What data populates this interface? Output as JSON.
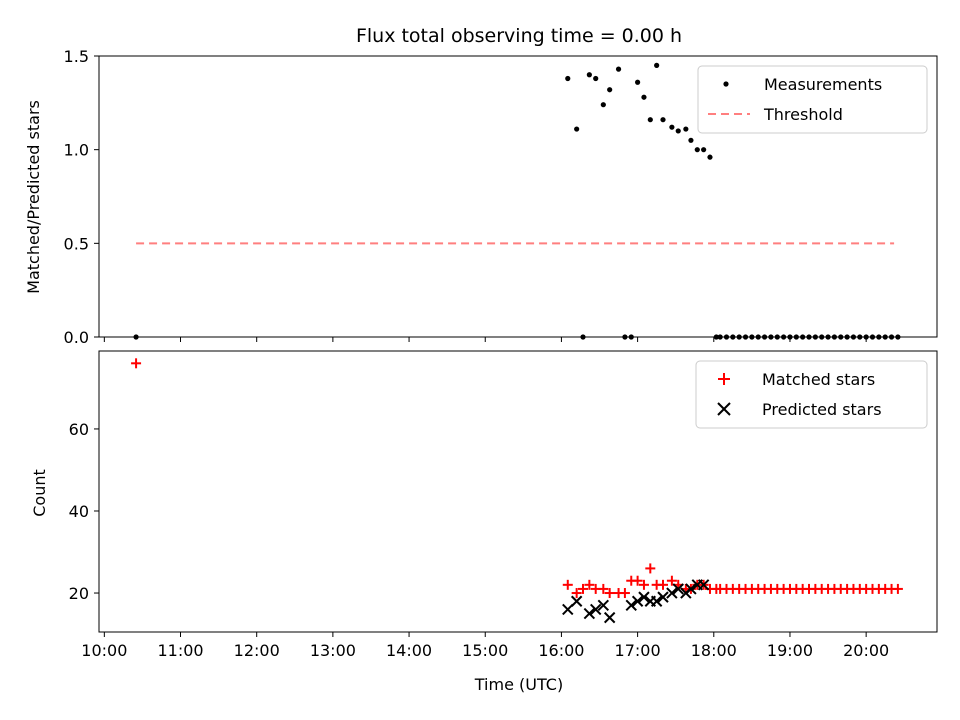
{
  "chart_data": [
    {
      "type": "scatter",
      "title": "Flux total observing time = 0.00 h",
      "xlabel": "",
      "ylabel": "Matched/Predicted stars",
      "xlim_hours": [
        9.93,
        20.93
      ],
      "ylim": [
        0,
        1.5
      ],
      "yticks": [
        0.0,
        0.5,
        1.0,
        1.5
      ],
      "ytick_labels": [
        "0.0",
        "0.5",
        "1.0",
        "1.5"
      ],
      "legend_position": "upper-right",
      "series": [
        {
          "name": "Measurements",
          "kind": "scatter",
          "color": "#000000",
          "x": [
            "10:25",
            "16:05",
            "16:12",
            "16:17",
            "16:22",
            "16:27",
            "16:33",
            "16:38",
            "16:45",
            "16:50",
            "16:55",
            "17:00",
            "17:05",
            "17:10",
            "17:15",
            "17:20",
            "17:27",
            "17:32",
            "17:38",
            "17:42",
            "17:47",
            "17:52",
            "17:57",
            "18:02",
            "18:05",
            "18:10",
            "18:15",
            "18:20",
            "18:25",
            "18:30",
            "18:35",
            "18:40",
            "18:45",
            "18:50",
            "18:55",
            "19:00",
            "19:05",
            "19:10",
            "19:15",
            "19:20",
            "19:25",
            "19:30",
            "19:35",
            "19:40",
            "19:45",
            "19:50",
            "19:55",
            "20:00",
            "20:05",
            "20:10",
            "20:15",
            "20:20",
            "20:25"
          ],
          "y": [
            0.0,
            1.38,
            1.11,
            0.0,
            1.4,
            1.38,
            1.24,
            1.32,
            1.43,
            0.0,
            0.0,
            1.36,
            1.28,
            1.16,
            1.45,
            1.16,
            1.12,
            1.1,
            1.11,
            1.05,
            1.0,
            1.0,
            0.96,
            0.0,
            0.0,
            0.0,
            0.0,
            0.0,
            0.0,
            0.0,
            0.0,
            0.0,
            0.0,
            0.0,
            0.0,
            0.0,
            0.0,
            0.0,
            0.0,
            0.0,
            0.0,
            0.0,
            0.0,
            0.0,
            0.0,
            0.0,
            0.0,
            0.0,
            0.0,
            0.0,
            0.0,
            0.0,
            0.0
          ]
        },
        {
          "name": "Threshold",
          "kind": "line-dashed",
          "color": "#ff7f7f",
          "x": [
            "10:25",
            "20:22"
          ],
          "y": [
            0.5,
            0.5
          ]
        }
      ]
    },
    {
      "type": "scatter",
      "title": "",
      "xlabel": "Time (UTC)",
      "ylabel": "Count",
      "xlim_hours": [
        9.93,
        20.93
      ],
      "ylim": [
        10.5,
        79
      ],
      "yticks": [
        20,
        40,
        60
      ],
      "ytick_labels": [
        "20",
        "40",
        "60"
      ],
      "xticks": [
        "10:00",
        "11:00",
        "12:00",
        "13:00",
        "14:00",
        "15:00",
        "16:00",
        "17:00",
        "18:00",
        "19:00",
        "20:00"
      ],
      "legend_position": "upper-right",
      "series": [
        {
          "name": "Matched stars",
          "marker": "plus",
          "color": "#ff0000",
          "x": [
            "10:25",
            "16:05",
            "16:12",
            "16:17",
            "16:22",
            "16:27",
            "16:33",
            "16:38",
            "16:45",
            "16:50",
            "16:55",
            "17:00",
            "17:05",
            "17:10",
            "17:15",
            "17:20",
            "17:27",
            "17:32",
            "17:38",
            "17:42",
            "17:47",
            "17:52",
            "17:57",
            "18:02",
            "18:05",
            "18:10",
            "18:15",
            "18:20",
            "18:25",
            "18:30",
            "18:35",
            "18:40",
            "18:45",
            "18:50",
            "18:55",
            "19:00",
            "19:05",
            "19:10",
            "19:15",
            "19:20",
            "19:25",
            "19:30",
            "19:35",
            "19:40",
            "19:45",
            "19:50",
            "19:55",
            "20:00",
            "20:05",
            "20:10",
            "20:15",
            "20:20",
            "20:25"
          ],
          "y": [
            76,
            22,
            20,
            21,
            22,
            21,
            21,
            20,
            20,
            20,
            23,
            23,
            22,
            26,
            22,
            22,
            23,
            22,
            21,
            21,
            22,
            22,
            21,
            21,
            21,
            21,
            21,
            21,
            21,
            21,
            21,
            21,
            21,
            21,
            21,
            21,
            21,
            21,
            21,
            21,
            21,
            21,
            21,
            21,
            21,
            21,
            21,
            21,
            21,
            21,
            21,
            21,
            21
          ]
        },
        {
          "name": "Predicted stars",
          "marker": "x",
          "color": "#000000",
          "x": [
            "16:05",
            "16:12",
            "16:22",
            "16:27",
            "16:33",
            "16:38",
            "16:55",
            "17:00",
            "17:05",
            "17:10",
            "17:15",
            "17:20",
            "17:27",
            "17:32",
            "17:38",
            "17:42",
            "17:47",
            "17:52"
          ],
          "y": [
            16,
            18,
            15,
            16,
            17,
            14,
            17,
            18,
            19,
            18,
            18,
            19,
            20,
            21,
            20,
            21,
            22,
            22
          ]
        }
      ]
    }
  ]
}
